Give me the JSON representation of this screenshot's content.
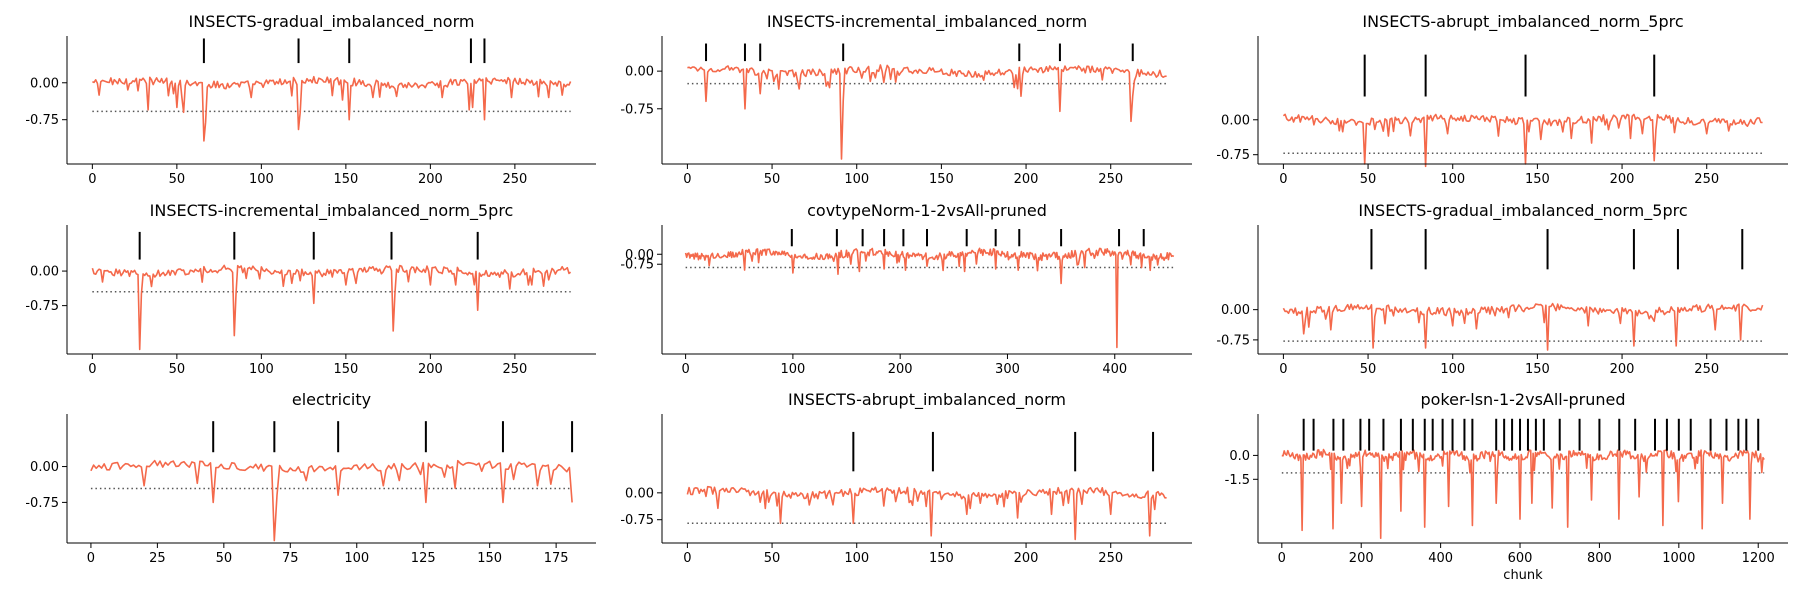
{
  "colors": {
    "signal": "#f4694b",
    "drift_marker": "#000000",
    "threshold": "#555555"
  },
  "chart_data": [
    {
      "type": "line",
      "title": "INSECTS-gradual_imbalanced_norm",
      "xlabel": "",
      "ylabel": "",
      "xlim": [
        -15,
        298
      ],
      "ylim": [
        -1.65,
        0.95
      ],
      "xticks": [
        0,
        50,
        100,
        150,
        200,
        250
      ],
      "yticks": [
        0.0,
        -0.75
      ],
      "ytick_labels": [
        "0.00",
        "-0.75"
      ],
      "x_max": 283,
      "threshold": -0.58,
      "spikes": [
        [
          33,
          -0.55
        ],
        [
          50,
          -0.5
        ],
        [
          54,
          -0.6
        ],
        [
          66,
          -1.18
        ],
        [
          67,
          -0.8
        ],
        [
          94,
          -0.3
        ],
        [
          122,
          -0.95
        ],
        [
          123,
          -0.6
        ],
        [
          148,
          -0.35
        ],
        [
          152,
          -0.75
        ],
        [
          166,
          -0.3
        ],
        [
          207,
          -0.3
        ],
        [
          223,
          -0.55
        ],
        [
          225,
          -0.5
        ],
        [
          232,
          -0.75
        ],
        [
          248,
          -0.3
        ],
        [
          270,
          -0.3
        ],
        [
          278,
          -0.25
        ]
      ],
      "drifts": [
        66,
        122,
        152,
        224,
        232
      ],
      "marker_band": [
        0.4,
        0.9
      ]
    },
    {
      "type": "line",
      "title": "INSECTS-incremental_imbalanced_norm",
      "xlabel": "",
      "ylabel": "",
      "xlim": [
        -15,
        298
      ],
      "ylim": [
        -1.85,
        0.7
      ],
      "xticks": [
        0,
        50,
        100,
        150,
        200,
        250
      ],
      "yticks": [
        0.0,
        -0.75
      ],
      "ytick_labels": [
        "0.00",
        "-0.75"
      ],
      "x_max": 283,
      "threshold": -0.25,
      "spikes": [
        [
          11,
          -0.6
        ],
        [
          34,
          -0.75
        ],
        [
          43,
          -0.45
        ],
        [
          91,
          -1.75
        ],
        [
          92,
          -0.6
        ],
        [
          195,
          -0.35
        ],
        [
          197,
          -0.5
        ],
        [
          220,
          -0.8
        ],
        [
          262,
          -1.0
        ],
        [
          263,
          -0.5
        ]
      ],
      "drifts": [
        11,
        34,
        43,
        92,
        196,
        220,
        263
      ],
      "marker_band": [
        0.2,
        0.55
      ]
    },
    {
      "type": "line",
      "title": "INSECTS-abrupt_imbalanced_norm_5prc",
      "xlabel": "",
      "ylabel": "",
      "xlim": [
        -15,
        298
      ],
      "ylim": [
        -0.95,
        1.8
      ],
      "xticks": [
        0,
        50,
        100,
        150,
        200,
        250
      ],
      "yticks": [
        0.0,
        -0.75
      ],
      "ytick_labels": [
        "0.00",
        "-0.75"
      ],
      "x_max": 283,
      "threshold": -0.72,
      "spikes": [
        [
          48,
          -0.95
        ],
        [
          62,
          -0.35
        ],
        [
          84,
          -1.0
        ],
        [
          97,
          -0.3
        ],
        [
          127,
          -0.35
        ],
        [
          143,
          -0.95
        ],
        [
          170,
          -0.4
        ],
        [
          182,
          -0.5
        ],
        [
          205,
          -0.4
        ],
        [
          212,
          -0.3
        ],
        [
          219,
          -0.88
        ],
        [
          250,
          -0.3
        ]
      ],
      "drifts": [
        48,
        84,
        143,
        219
      ],
      "marker_band": [
        0.5,
        1.4
      ]
    },
    {
      "type": "line",
      "title": "INSECTS-incremental_imbalanced_norm_5prc",
      "xlabel": "",
      "ylabel": "",
      "xlim": [
        -15,
        298
      ],
      "ylim": [
        -1.8,
        1.0
      ],
      "xticks": [
        0,
        50,
        100,
        150,
        200,
        250
      ],
      "yticks": [
        0.0,
        -0.75
      ],
      "ytick_labels": [
        "0.00",
        "-0.75"
      ],
      "x_max": 283,
      "threshold": -0.45,
      "spikes": [
        [
          28,
          -1.7
        ],
        [
          29,
          -0.5
        ],
        [
          84,
          -1.4
        ],
        [
          85,
          -0.5
        ],
        [
          131,
          -0.7
        ],
        [
          178,
          -1.3
        ],
        [
          179,
          -0.5
        ],
        [
          228,
          -0.85
        ],
        [
          150,
          -0.3
        ],
        [
          200,
          -0.3
        ],
        [
          215,
          -0.3
        ],
        [
          260,
          -0.3
        ]
      ],
      "drifts": [
        28,
        84,
        131,
        177,
        228
      ],
      "marker_band": [
        0.25,
        0.85
      ]
    },
    {
      "type": "line",
      "title": "covtypeNorm-1-2vsAll-pruned",
      "xlabel": "",
      "ylabel": "",
      "xlim": [
        -22,
        472
      ],
      "ylim": [
        -7.5,
        2.2
      ],
      "xticks": [
        0,
        100,
        200,
        300,
        400
      ],
      "yticks": [
        0.0,
        -0.75
      ],
      "ytick_labels": [
        "0.00",
        "-0.75"
      ],
      "x_max": 455,
      "threshold": -1.0,
      "spikes": [
        [
          100,
          -1.4
        ],
        [
          142,
          -1.5
        ],
        [
          162,
          -1.3
        ],
        [
          185,
          -1.1
        ],
        [
          205,
          -1.2
        ],
        [
          225,
          -0.9
        ],
        [
          260,
          -1.3
        ],
        [
          289,
          -1.1
        ],
        [
          310,
          -1.2
        ],
        [
          350,
          -2.2
        ],
        [
          365,
          -0.8
        ],
        [
          402,
          -7.0
        ],
        [
          425,
          -1.0
        ],
        [
          440,
          -0.8
        ]
      ],
      "drifts": [
        99,
        141,
        165,
        185,
        203,
        225,
        262,
        289,
        311,
        350,
        404,
        427
      ],
      "marker_band": [
        0.6,
        1.9
      ]
    },
    {
      "type": "line",
      "title": "INSECTS-gradual_imbalanced_norm_5prc",
      "xlabel": "",
      "ylabel": "",
      "xlim": [
        -15,
        298
      ],
      "ylim": [
        -1.1,
        2.1
      ],
      "xticks": [
        0,
        50,
        100,
        150,
        200,
        250
      ],
      "yticks": [
        0.0,
        -0.75
      ],
      "ytick_labels": [
        "0.00",
        "-0.75"
      ],
      "x_max": 283,
      "threshold": -0.78,
      "spikes": [
        [
          12,
          -0.6
        ],
        [
          28,
          -0.5
        ],
        [
          53,
          -0.95
        ],
        [
          84,
          -0.95
        ],
        [
          100,
          -0.4
        ],
        [
          156,
          -1.0
        ],
        [
          180,
          -0.4
        ],
        [
          207,
          -0.9
        ],
        [
          232,
          -0.9
        ],
        [
          255,
          -0.5
        ],
        [
          270,
          -0.75
        ]
      ],
      "drifts": [
        52,
        84,
        156,
        207,
        233,
        271
      ],
      "marker_band": [
        1.0,
        2.0
      ]
    },
    {
      "type": "line",
      "title": "electricity",
      "xlabel": "",
      "ylabel": "",
      "xlim": [
        -9,
        190
      ],
      "ylim": [
        -1.6,
        1.1
      ],
      "xticks": [
        0,
        25,
        50,
        75,
        100,
        125,
        150,
        175
      ],
      "yticks": [
        0.0,
        -0.75
      ],
      "ytick_labels": [
        "0.00",
        "-0.75"
      ],
      "x_max": 181,
      "threshold": -0.46,
      "spikes": [
        [
          20,
          -0.4
        ],
        [
          40,
          -0.35
        ],
        [
          46,
          -0.75
        ],
        [
          69,
          -1.55
        ],
        [
          70,
          -0.6
        ],
        [
          93,
          -0.6
        ],
        [
          110,
          -0.4
        ],
        [
          126,
          -0.75
        ],
        [
          137,
          -0.45
        ],
        [
          155,
          -0.75
        ],
        [
          168,
          -0.4
        ],
        [
          181,
          -0.75
        ]
      ],
      "drifts": [
        46,
        69,
        93,
        126,
        155,
        181
      ],
      "marker_band": [
        0.3,
        0.95
      ]
    },
    {
      "type": "line",
      "title": "INSECTS-abrupt_imbalanced_norm",
      "xlabel": "",
      "ylabel": "",
      "xlim": [
        -15,
        298
      ],
      "ylim": [
        -1.4,
        2.2
      ],
      "xticks": [
        0,
        50,
        100,
        150,
        200,
        250
      ],
      "yticks": [
        0.0,
        -0.75
      ],
      "ytick_labels": [
        "0.00",
        "-0.75"
      ],
      "x_max": 283,
      "threshold": -0.85,
      "spikes": [
        [
          55,
          -0.85
        ],
        [
          98,
          -0.85
        ],
        [
          144,
          -1.2
        ],
        [
          165,
          -0.6
        ],
        [
          195,
          -0.7
        ],
        [
          215,
          -0.6
        ],
        [
          229,
          -1.3
        ],
        [
          250,
          -0.6
        ],
        [
          273,
          -1.2
        ]
      ],
      "drifts": [
        98,
        145,
        229,
        275
      ],
      "marker_band": [
        0.6,
        1.7
      ]
    },
    {
      "type": "line",
      "title": "poker-lsn-1-2vsAll-pruned",
      "xlabel": "chunk",
      "ylabel": "",
      "xlim": [
        -60,
        1275
      ],
      "ylim": [
        -5.5,
        2.6
      ],
      "xticks": [
        0,
        200,
        400,
        600,
        800,
        1000,
        1200
      ],
      "yticks": [
        0.0,
        -1.5
      ],
      "ytick_labels": [
        "0.0",
        "-1.5"
      ],
      "x_max": 1215,
      "threshold": -1.1,
      "spikes": [
        [
          50,
          -4.7
        ],
        [
          130,
          -4.6
        ],
        [
          150,
          -3.0
        ],
        [
          200,
          -3.2
        ],
        [
          250,
          -5.2
        ],
        [
          300,
          -3.5
        ],
        [
          360,
          -4.5
        ],
        [
          420,
          -3.2
        ],
        [
          480,
          -4.4
        ],
        [
          540,
          -3.0
        ],
        [
          600,
          -4.0
        ],
        [
          630,
          -3.0
        ],
        [
          680,
          -3.3
        ],
        [
          720,
          -4.5
        ],
        [
          780,
          -2.8
        ],
        [
          850,
          -4.0
        ],
        [
          900,
          -2.6
        ],
        [
          960,
          -4.4
        ],
        [
          1000,
          -2.9
        ],
        [
          1060,
          -4.6
        ],
        [
          1110,
          -3.0
        ],
        [
          1180,
          -4.0
        ]
      ],
      "drifts": [
        55,
        80,
        130,
        155,
        198,
        220,
        256,
        300,
        330,
        360,
        380,
        405,
        430,
        460,
        480,
        540,
        560,
        580,
        600,
        620,
        640,
        660,
        700,
        750,
        800,
        850,
        890,
        940,
        970,
        1000,
        1030,
        1080,
        1120,
        1150,
        1170,
        1200
      ],
      "marker_band": [
        0.3,
        2.3
      ]
    }
  ]
}
